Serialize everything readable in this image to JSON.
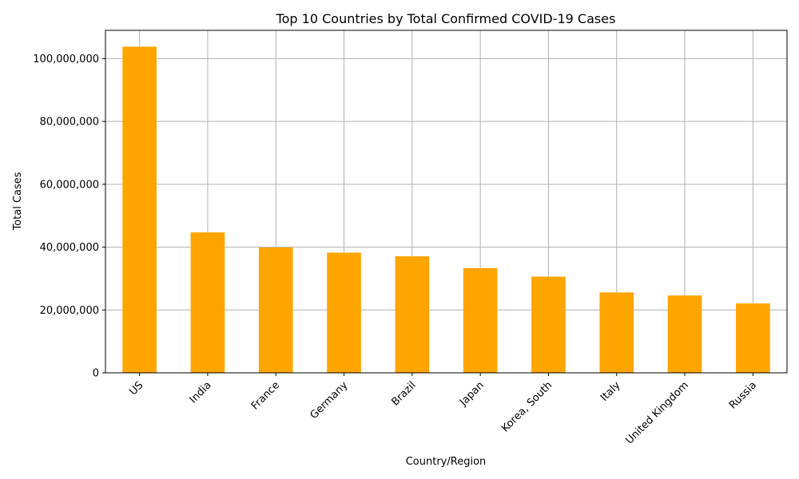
{
  "chart_data": {
    "type": "bar",
    "title": "Top 10 Countries by Total Confirmed COVID-19 Cases",
    "xlabel": "Country/Region",
    "ylabel": "Total Cases",
    "categories": [
      "US",
      "India",
      "France",
      "Germany",
      "Brazil",
      "Japan",
      "Korea, South",
      "Italy",
      "United Kingdom",
      "Russia"
    ],
    "values": [
      103800000,
      44690000,
      39900000,
      38250000,
      37080000,
      33320000,
      30620000,
      25600000,
      24620000,
      22080000
    ],
    "ylim": [
      0,
      109000000
    ],
    "yticks": [
      0,
      20000000,
      40000000,
      60000000,
      80000000,
      100000000
    ],
    "ytick_labels": [
      "0",
      "20,000,000",
      "40,000,000",
      "60,000,000",
      "80,000,000",
      "100,000,000"
    ],
    "grid": true,
    "bar_color": "#FFA500",
    "grid_color": "#b0b0b0"
  }
}
